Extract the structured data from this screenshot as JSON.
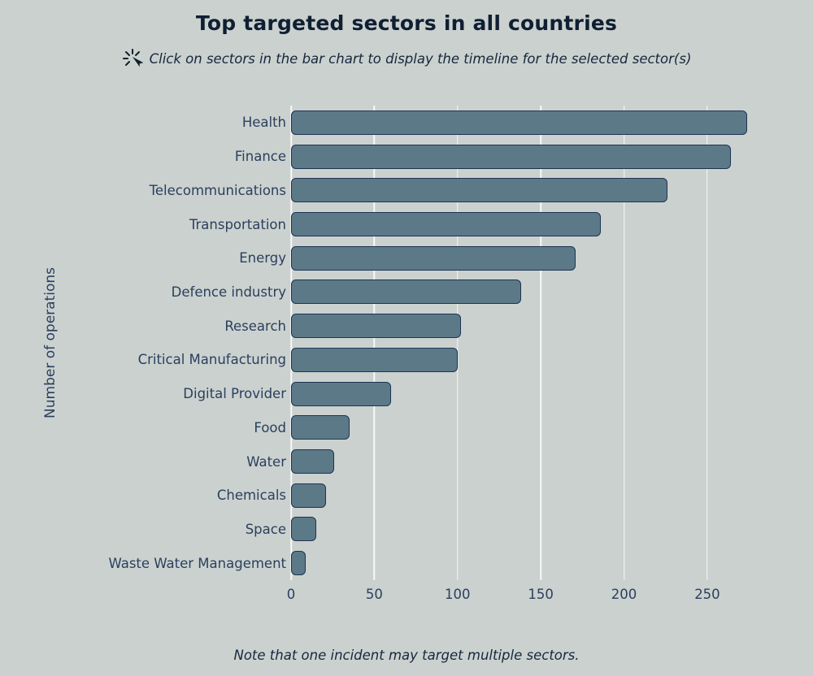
{
  "title": "Top targeted sectors in all countries",
  "subtitle": "Click on sectors in the bar chart to display the timeline for the selected sector(s)",
  "note": "Note that one incident may target multiple sectors.",
  "icons": {
    "click_icon": "click-burst"
  },
  "chart_data": {
    "type": "bar",
    "orientation": "horizontal",
    "title": "Top targeted sectors in all countries",
    "ylabel": "Number of operations",
    "xlabel": "",
    "categories": [
      "Health",
      "Finance",
      "Telecommunications",
      "Transportation",
      "Energy",
      "Defence industry",
      "Research",
      "Critical Manufacturing",
      "Digital Provider",
      "Food",
      "Water",
      "Chemicals",
      "Space",
      "Waste Water Management"
    ],
    "values": [
      274,
      264,
      226,
      186,
      171,
      138,
      102,
      100,
      60,
      35,
      26,
      21,
      15,
      9
    ],
    "xticks": [
      0,
      50,
      100,
      150,
      200,
      250
    ],
    "xlim": [
      0,
      293
    ],
    "grid": true,
    "legend": false,
    "colors": {
      "background": "#cbd1ce",
      "bar_fill": "#5c7988",
      "bar_border": "#1e3354",
      "text": "#2a3f5f",
      "gridline": "#ffffff"
    }
  }
}
